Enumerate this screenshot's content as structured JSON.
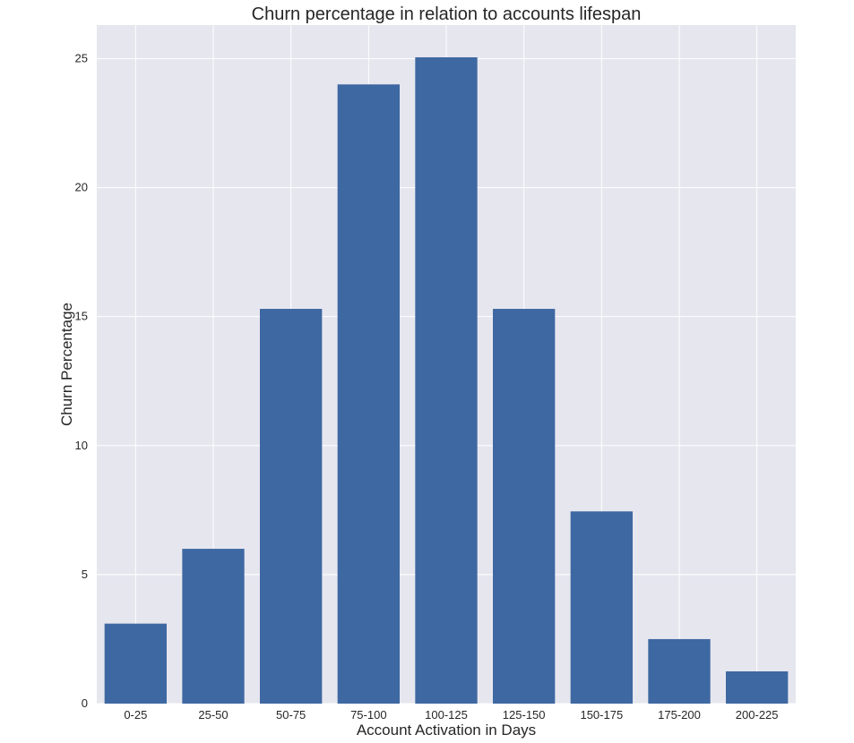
{
  "chart_data": {
    "type": "bar",
    "title": "Churn percentage in relation to accounts lifespan",
    "xlabel": "Account Activation in Days",
    "ylabel": "Churn Percentage",
    "categories": [
      "0-25",
      "25-50",
      "50-75",
      "75-100",
      "100-125",
      "125-150",
      "150-175",
      "175-200",
      "200-225"
    ],
    "values": [
      3.1,
      6.0,
      15.3,
      24.0,
      25.05,
      15.3,
      7.45,
      2.5,
      1.25
    ],
    "ylim": [
      0,
      26.3
    ],
    "yticks": [
      0,
      5,
      10,
      15,
      20,
      25
    ],
    "grid": true,
    "legend": "none",
    "colors": {
      "bar": "#3e68a1",
      "plot_background": "#e6e6ef",
      "grid": "#ffffff"
    }
  }
}
